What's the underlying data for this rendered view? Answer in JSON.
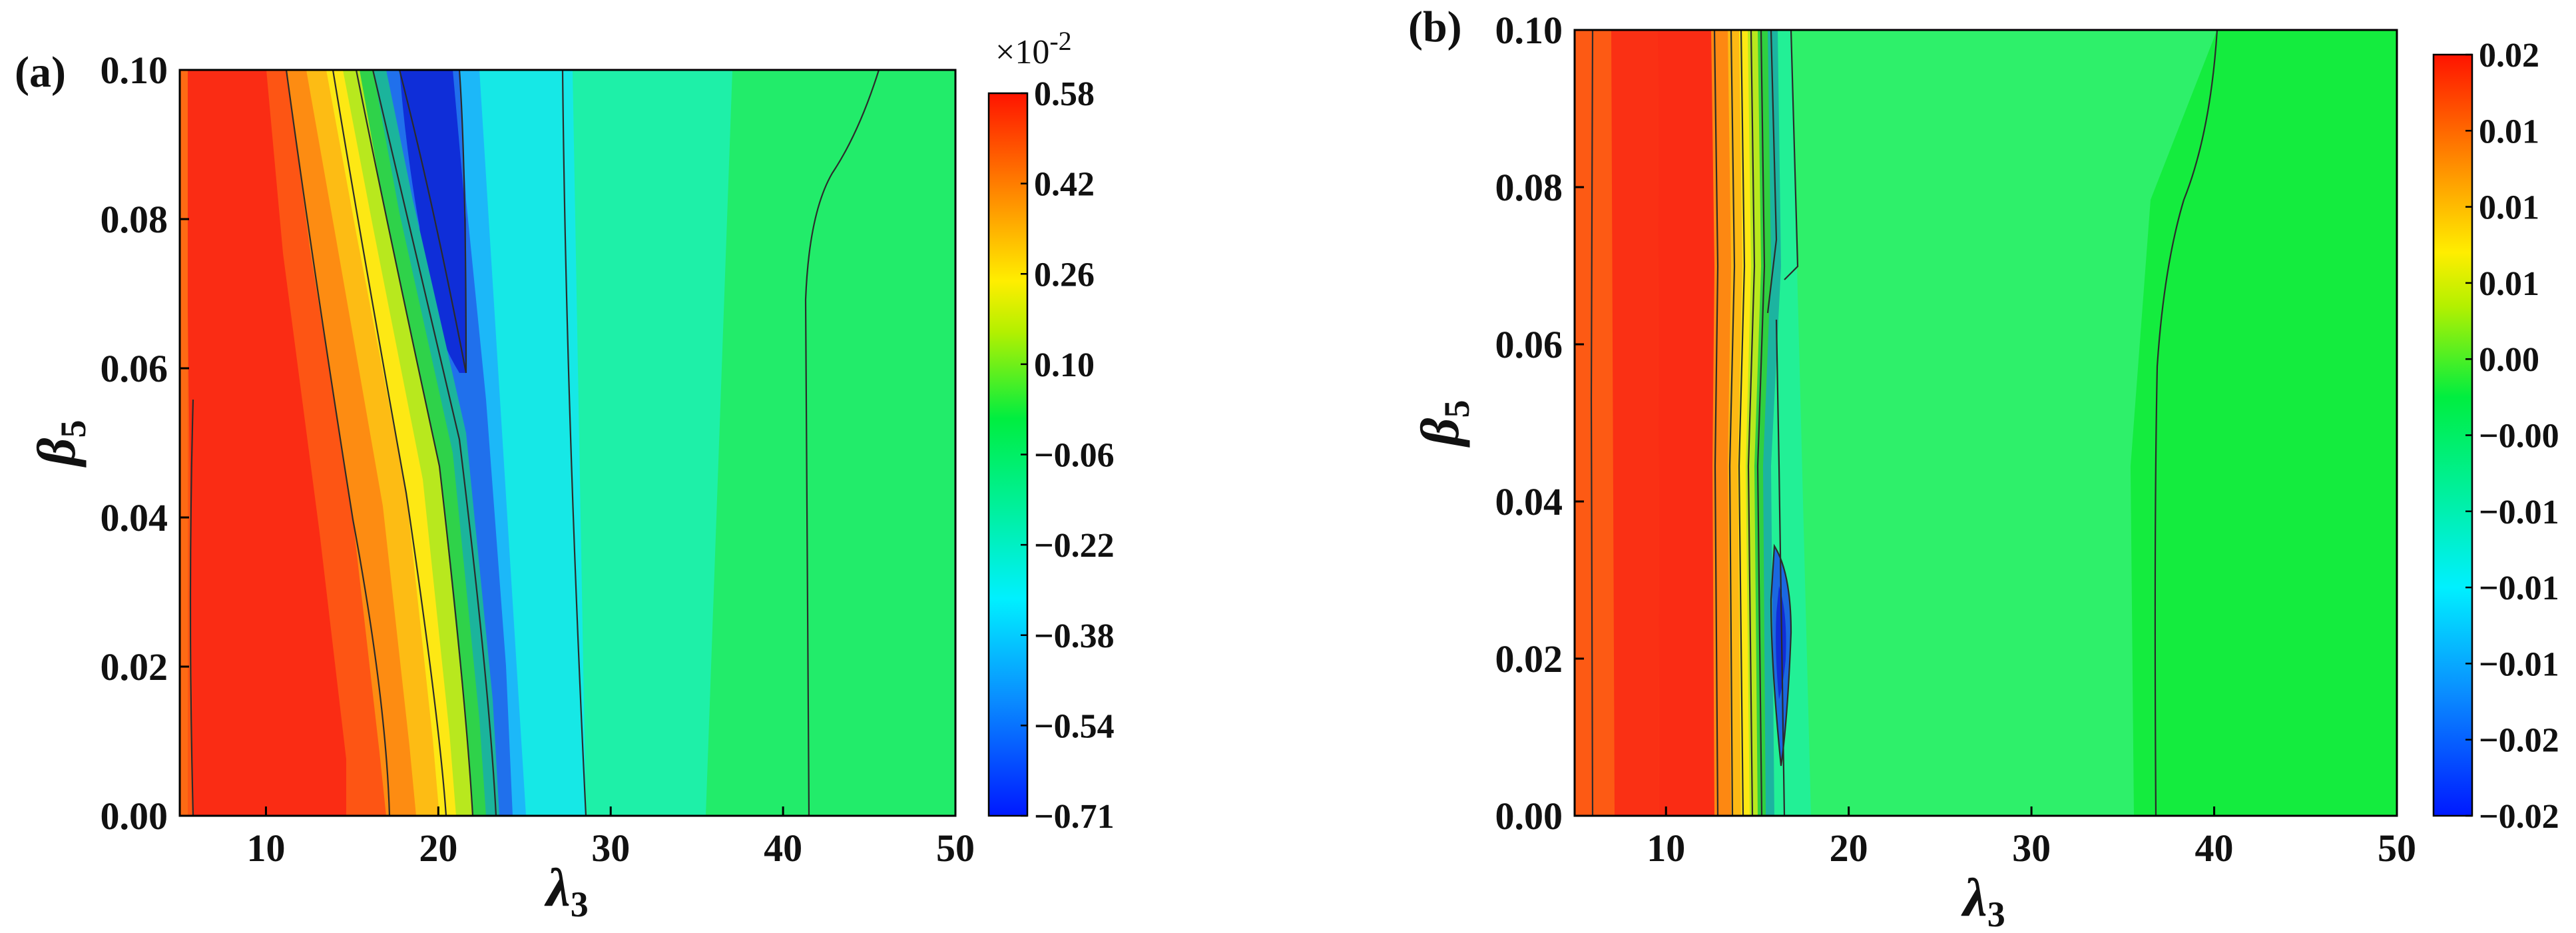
{
  "chart_data": [
    {
      "type": "heatmap",
      "panel_label": "(a)",
      "xlabel": "λ",
      "xlabel_sub": "3",
      "ylabel": "β",
      "ylabel_sub": "5",
      "xlim": [
        5,
        50
      ],
      "ylim": [
        0,
        0.1
      ],
      "xticks": [
        10,
        20,
        30,
        40,
        50
      ],
      "xtick_labels": [
        "10",
        "20",
        "30",
        "40",
        "50"
      ],
      "yticks": [
        0,
        0.02,
        0.04,
        0.06,
        0.08,
        0.1
      ],
      "ytick_labels": [
        "0.00",
        "0.02",
        "0.04",
        "0.06",
        "0.08",
        "0.10"
      ],
      "colorbar": {
        "multiplier": "×10",
        "multiplier_exp": "-2",
        "range": [
          -0.71,
          0.58
        ],
        "ticks": [
          0.58,
          0.42,
          0.26,
          0.1,
          -0.06,
          -0.22,
          -0.38,
          -0.54,
          -0.71
        ],
        "tick_labels": [
          "0.58",
          "0.42",
          "0.26",
          "0.10",
          "−0.06",
          "−0.22",
          "−0.38",
          "−0.54",
          "−0.71"
        ]
      },
      "colormap": "rainbow (blue-cyan-green-yellow-red)",
      "description_values": "max ≈0.58 at λ3≈5–15; min ≈−0.71 near λ3≈19, β5≈0.08; near-zero plateau (≈−0.1) for λ3>35"
    },
    {
      "type": "heatmap",
      "panel_label": "(b)",
      "xlabel": "λ",
      "xlabel_sub": "3",
      "ylabel": "β",
      "ylabel_sub": "5",
      "xlim": [
        5,
        50
      ],
      "ylim": [
        0,
        0.1
      ],
      "xticks": [
        10,
        20,
        30,
        40,
        50
      ],
      "xtick_labels": [
        "10",
        "20",
        "30",
        "40",
        "50"
      ],
      "yticks": [
        0,
        0.02,
        0.04,
        0.06,
        0.08,
        0.1
      ],
      "ytick_labels": [
        "0.00",
        "0.02",
        "0.04",
        "0.06",
        "0.08",
        "0.10"
      ],
      "colorbar": {
        "range": [
          -0.02,
          0.02
        ],
        "tick_labels": [
          "0.02",
          "0.01",
          "0.01",
          "0.01",
          "0.00",
          "−0.00",
          "−0.01",
          "−0.01",
          "−0.01",
          "−0.02",
          "−0.02"
        ]
      },
      "colormap": "rainbow (blue-cyan-green-yellow-red)",
      "description_values": "max ≈0.02 at λ3≈5–15; sharp drop at λ3≈15–17 with min ≈−0.02 near λ3≈16, β5≈0.03; ≈0 plateau beyond"
    }
  ]
}
